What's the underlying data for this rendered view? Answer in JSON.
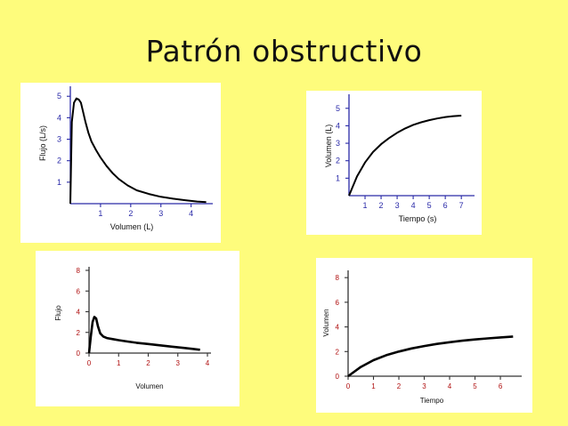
{
  "slide": {
    "title": "Patrón obstructivo"
  },
  "chart_data": [
    {
      "id": "flow-volume-1",
      "type": "line",
      "xlabel": "Volumen (L)",
      "ylabel": "Flujo (L/s)",
      "xticks": [
        1,
        2,
        3,
        4
      ],
      "yticks": [
        1,
        2,
        3,
        4,
        5
      ],
      "xlim": [
        0,
        4.6
      ],
      "ylim": [
        0,
        5.3
      ],
      "grid": false,
      "series": [
        {
          "x": [
            0,
            0.05,
            0.12,
            0.2,
            0.28,
            0.35,
            0.42,
            0.5,
            0.6,
            0.7,
            0.85,
            1.0,
            1.2,
            1.4,
            1.6,
            1.9,
            2.2,
            2.6,
            3.0,
            3.4,
            3.8,
            4.2,
            4.5
          ],
          "y": [
            0,
            3.8,
            4.7,
            4.9,
            4.85,
            4.7,
            4.3,
            3.8,
            3.3,
            2.9,
            2.5,
            2.15,
            1.75,
            1.42,
            1.15,
            0.85,
            0.62,
            0.45,
            0.32,
            0.23,
            0.16,
            0.1,
            0.07
          ]
        }
      ]
    },
    {
      "id": "volume-time-1",
      "type": "line",
      "xlabel": "Tiempo (s)",
      "ylabel": "Volumen (L)",
      "xticks": [
        1,
        2,
        3,
        4,
        5,
        6,
        7
      ],
      "yticks": [
        1,
        2,
        3,
        4,
        5
      ],
      "xlim": [
        0,
        7.6
      ],
      "ylim": [
        0,
        5.6
      ],
      "grid": false,
      "series": [
        {
          "x": [
            0,
            0.5,
            1,
            1.5,
            2,
            2.5,
            3,
            3.5,
            4,
            4.5,
            5,
            5.5,
            6,
            6.5,
            7
          ],
          "y": [
            0,
            1.1,
            1.9,
            2.5,
            2.95,
            3.3,
            3.6,
            3.85,
            4.05,
            4.2,
            4.32,
            4.42,
            4.5,
            4.55,
            4.58
          ]
        }
      ]
    },
    {
      "id": "flow-volume-2",
      "type": "line",
      "xlabel": "Volumen",
      "ylabel": "Flujo",
      "xticks": [
        0,
        1,
        2,
        3,
        4
      ],
      "yticks": [
        0,
        2,
        4,
        6,
        8
      ],
      "xlim": [
        0,
        4
      ],
      "ylim": [
        0,
        8
      ],
      "grid": false,
      "series": [
        {
          "x": [
            0,
            0.06,
            0.12,
            0.18,
            0.24,
            0.3,
            0.38,
            0.48,
            0.6,
            0.8,
            1.0,
            1.3,
            1.6,
            2.0,
            2.4,
            2.8,
            3.2,
            3.5,
            3.75
          ],
          "y": [
            0,
            1.6,
            3.0,
            3.5,
            3.35,
            2.6,
            1.9,
            1.6,
            1.45,
            1.35,
            1.25,
            1.12,
            1.0,
            0.88,
            0.75,
            0.62,
            0.5,
            0.4,
            0.32
          ]
        }
      ]
    },
    {
      "id": "volume-time-2",
      "type": "line",
      "xlabel": "Tiempo",
      "ylabel": "Volumen",
      "xticks": [
        0,
        1,
        2,
        3,
        4,
        5,
        6
      ],
      "yticks": [
        0,
        2,
        4,
        6,
        8
      ],
      "xlim": [
        0,
        6.7
      ],
      "ylim": [
        0,
        8.3
      ],
      "grid": false,
      "series": [
        {
          "x": [
            0,
            0.5,
            1,
            1.5,
            2,
            2.5,
            3,
            3.5,
            4,
            4.5,
            5,
            5.5,
            6,
            6.5
          ],
          "y": [
            0,
            0.75,
            1.3,
            1.7,
            2.0,
            2.25,
            2.45,
            2.62,
            2.76,
            2.88,
            2.98,
            3.07,
            3.15,
            3.22
          ]
        }
      ]
    }
  ]
}
